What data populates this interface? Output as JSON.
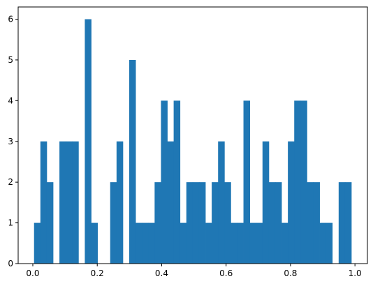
{
  "chart_data": {
    "type": "bar",
    "title": "",
    "xlabel": "",
    "ylabel": "",
    "xlim": [
      -0.0455,
      1.0387
    ],
    "ylim": [
      0,
      6.3
    ],
    "bin_start": 0.0038,
    "bin_width": 0.0197,
    "counts": [
      1,
      3,
      2,
      0,
      3,
      3,
      3,
      0,
      6,
      1,
      0,
      0,
      2,
      3,
      0,
      5,
      1,
      1,
      1,
      2,
      4,
      3,
      4,
      1,
      2,
      2,
      2,
      1,
      2,
      3,
      2,
      1,
      1,
      4,
      1,
      1,
      3,
      2,
      2,
      1,
      3,
      4,
      4,
      2,
      2,
      1,
      1,
      0,
      2,
      2
    ],
    "x_ticks": [
      0.0,
      0.2,
      0.4,
      0.6,
      0.8,
      1.0
    ],
    "x_tick_labels": [
      "0.0",
      "0.2",
      "0.4",
      "0.6",
      "0.8",
      "1.0"
    ],
    "y_ticks": [
      0,
      1,
      2,
      3,
      4,
      5,
      6
    ],
    "y_tick_labels": [
      "0",
      "1",
      "2",
      "3",
      "4",
      "5",
      "6"
    ],
    "grid": false,
    "bar_color": "#1f77b4"
  }
}
